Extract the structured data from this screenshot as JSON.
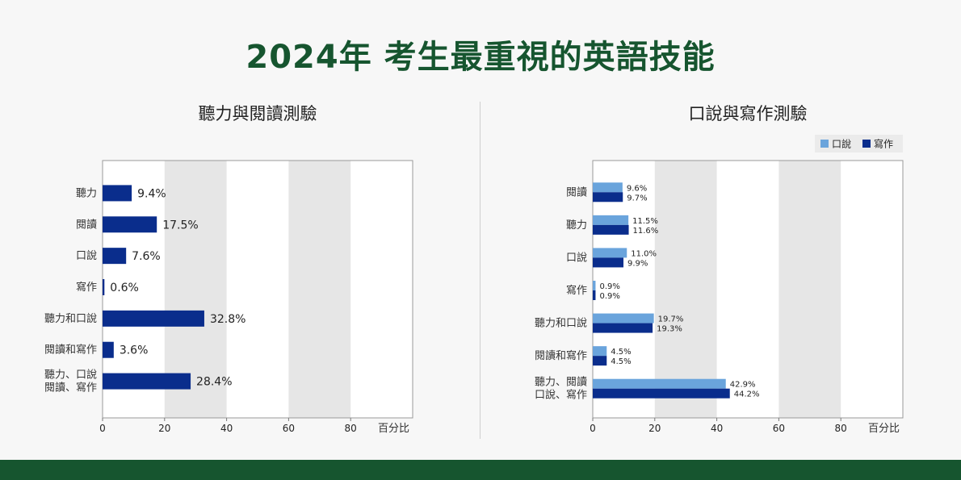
{
  "page_title": "2024年 考生最重視的英語技能",
  "colors": {
    "brand_green": "#16552f",
    "bar_dark": "#0a2d8c",
    "bar_light": "#6aa4dc",
    "band_gray": "#e6e6e6"
  },
  "chart_data": [
    {
      "type": "bar",
      "orientation": "horizontal",
      "title": "聽力與閱讀測驗",
      "categories": [
        "聽力",
        "閱讀",
        "口說",
        "寫作",
        "聽力和口說",
        "閱讀和寫作",
        "聽力、口說\n閱讀、寫作"
      ],
      "series": [
        {
          "values": [
            9.4,
            17.5,
            7.6,
            0.6,
            32.8,
            3.6,
            28.4
          ],
          "labels": [
            "9.4%",
            "17.5%",
            "7.6%",
            "0.6%",
            "32.8%",
            "3.6%",
            "28.4%"
          ]
        }
      ],
      "xticks": [
        "0",
        "20",
        "40",
        "60",
        "80"
      ],
      "xlabel": "百分比",
      "xlim": [
        0,
        100
      ],
      "grid_bands": [
        [
          20,
          40
        ],
        [
          60,
          80
        ]
      ]
    },
    {
      "type": "bar",
      "orientation": "horizontal",
      "title": "口說與寫作測驗",
      "categories": [
        "閱讀",
        "聽力",
        "口說",
        "寫作",
        "聽力和口說",
        "閱讀和寫作",
        "聽力、閱讀\n口說、寫作"
      ],
      "series": [
        {
          "name": "口說",
          "values": [
            9.6,
            11.5,
            11.0,
            0.9,
            19.7,
            4.5,
            42.9
          ],
          "labels": [
            "9.6%",
            "11.5%",
            "11.0%",
            "0.9%",
            "19.7%",
            "4.5%",
            "42.9%"
          ]
        },
        {
          "name": "寫作",
          "values": [
            9.7,
            11.6,
            9.9,
            0.9,
            19.3,
            4.5,
            44.2
          ],
          "labels": [
            "9.7%",
            "11.6%",
            "9.9%",
            "0.9%",
            "19.3%",
            "4.5%",
            "44.2%"
          ]
        }
      ],
      "legend_position": "top-right",
      "xticks": [
        "0",
        "20",
        "40",
        "60",
        "80"
      ],
      "xlabel": "百分比",
      "xlim": [
        0,
        100
      ],
      "grid_bands": [
        [
          20,
          40
        ],
        [
          60,
          80
        ]
      ]
    }
  ]
}
